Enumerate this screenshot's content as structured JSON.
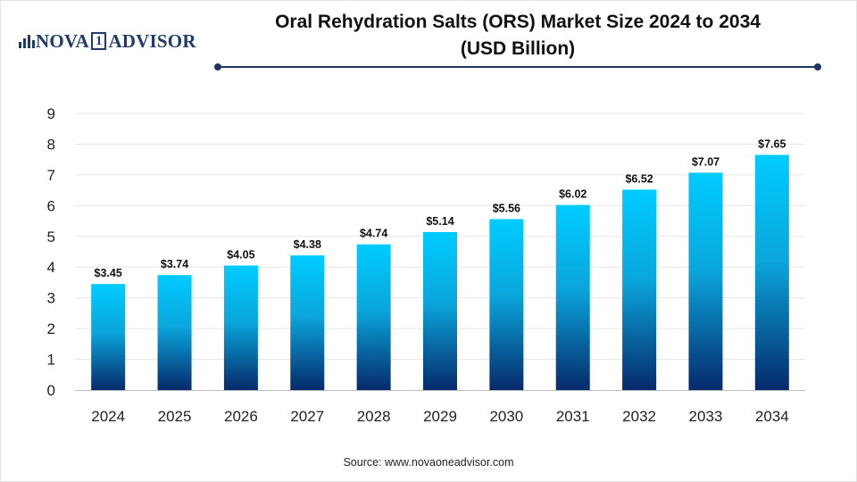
{
  "header": {
    "logo_text_left": "NOVA",
    "logo_number": "1",
    "logo_text_right": "ADVISOR",
    "title_line1": "Oral Rehydration Salts (ORS) Market Size 2024 to 2034",
    "title_line2": "(USD Billion)"
  },
  "footer": {
    "source": "Source: www.novaoneadvisor.com"
  },
  "colors": {
    "bar_top": "#00ccff",
    "bar_mid": "#0aa6dc",
    "bar_bottom": "#062a6b",
    "rule": "#1f3563",
    "logo": "#1f3a6e"
  },
  "chart_data": {
    "type": "bar",
    "title": "Oral Rehydration Salts (ORS) Market Size 2024 to 2034 (USD Billion)",
    "categories": [
      "2024",
      "2025",
      "2026",
      "2027",
      "2028",
      "2029",
      "2030",
      "2031",
      "2032",
      "2033",
      "2034"
    ],
    "values": [
      3.45,
      3.74,
      4.05,
      4.38,
      4.74,
      5.14,
      5.56,
      6.02,
      6.52,
      7.07,
      7.65
    ],
    "data_labels": [
      "$3.45",
      "$3.74",
      "$4.05",
      "$4.38",
      "$4.74",
      "$5.14",
      "$5.56",
      "$6.02",
      "$6.52",
      "$7.07",
      "$7.65"
    ],
    "yticks": [
      0,
      1,
      2,
      3,
      4,
      5,
      6,
      7,
      8,
      9
    ],
    "ylim": [
      0,
      9
    ],
    "xlabel": "",
    "ylabel": "",
    "grid": true,
    "legend": "none"
  }
}
